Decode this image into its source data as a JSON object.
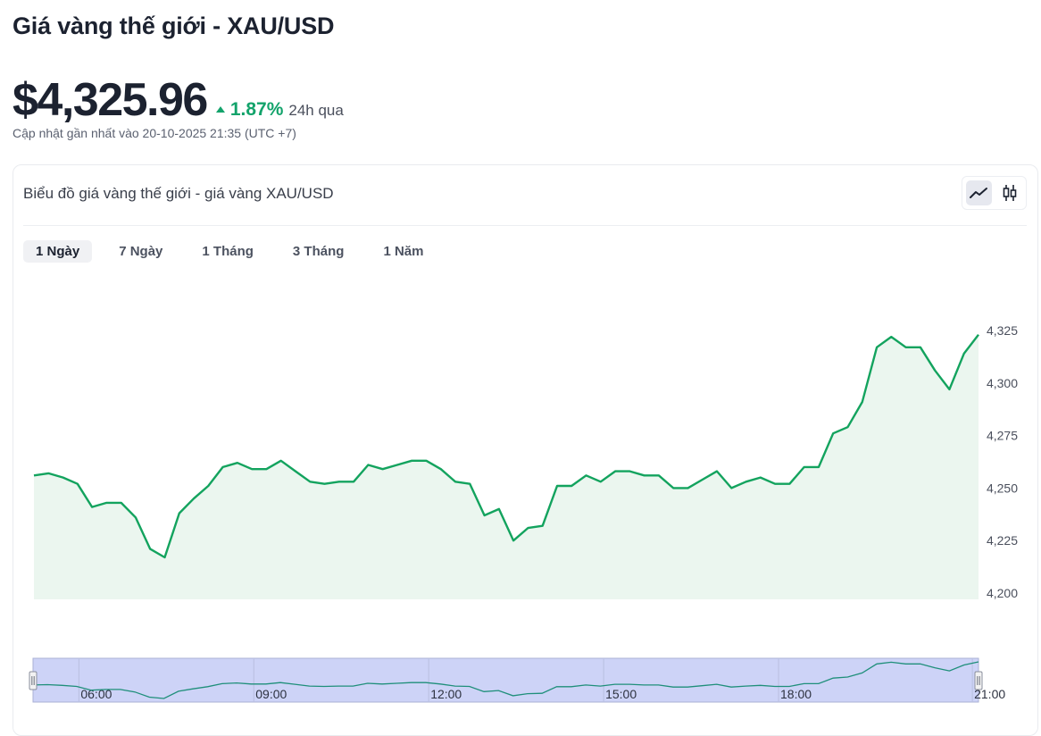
{
  "page": {
    "title": "Giá vàng thế giới - XAU/USD",
    "price": "$4,325.96",
    "change_pct": "1.87%",
    "change_period": "24h qua",
    "updated": "Cập nhật gần nhất vào 20-10-2025 21:35 (UTC +7)"
  },
  "card": {
    "title": "Biểu đồ giá vàng thế giới - giá vàng XAU/USD",
    "toggle": [
      {
        "name": "line-chart-icon",
        "active": true
      },
      {
        "name": "candlestick-icon",
        "active": false
      }
    ],
    "tabs": [
      {
        "label": "1 Ngày",
        "active": true
      },
      {
        "label": "7 Ngày",
        "active": false
      },
      {
        "label": "1 Tháng",
        "active": false
      },
      {
        "label": "3 Tháng",
        "active": false
      },
      {
        "label": "1 Năm",
        "active": false
      }
    ]
  },
  "colors": {
    "accent_green": "#13a36b",
    "line": "#13a35e",
    "area": "#ebf6ef",
    "navigator_fill": "#cdd3f7",
    "navigator_line": "#1f8f7a"
  },
  "chart_data": {
    "type": "area",
    "y_ticks": [
      "4,325",
      "4,300",
      "4,275",
      "4,250",
      "4,225",
      "4,200"
    ],
    "y_tick_values": [
      4325,
      4300,
      4275,
      4250,
      4225,
      4200
    ],
    "ylim": [
      4200,
      4325
    ],
    "x_ticks": [
      "06:00",
      "09:00",
      "12:00",
      "15:00",
      "18:00",
      "21:00"
    ],
    "values": [
      4256,
      4257,
      4255,
      4252,
      4241,
      4243,
      4243,
      4236,
      4221,
      4217,
      4238,
      4245,
      4251,
      4260,
      4262,
      4259,
      4259,
      4263,
      4258,
      4253,
      4252,
      4253,
      4253,
      4261,
      4259,
      4261,
      4263,
      4263,
      4259,
      4253,
      4252,
      4237,
      4240,
      4225,
      4231,
      4232,
      4251,
      4251,
      4256,
      4253,
      4258,
      4258,
      4256,
      4256,
      4250,
      4250,
      4254,
      4258,
      4250,
      4253,
      4255,
      4252,
      4252,
      4260,
      4260,
      4276,
      4279,
      4291,
      4317,
      4322,
      4317,
      4317,
      4306,
      4297,
      4314,
      4323
    ],
    "grid": false,
    "legend": "none"
  }
}
